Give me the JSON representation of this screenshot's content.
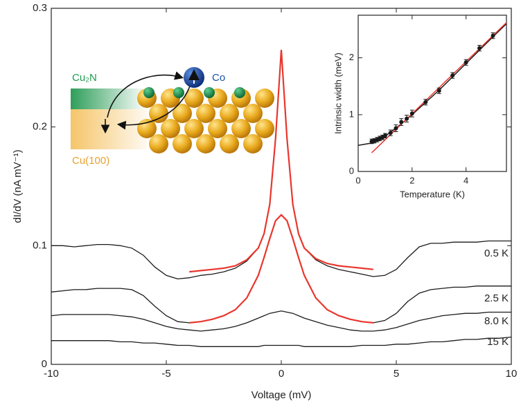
{
  "chart_data": [
    {
      "type": "line",
      "x_label": "Voltage (mV)",
      "y_label": "dI/dV (nA mV⁻¹)",
      "xlim": [
        -10,
        10
      ],
      "xticks": [
        -10,
        -5,
        0,
        5,
        10
      ],
      "ylim": [
        0,
        0.3
      ],
      "yticks": [
        0,
        0.1,
        0.2,
        0.3
      ],
      "x": [
        -10,
        -9.5,
        -9,
        -8.5,
        -8,
        -7.5,
        -7,
        -6.5,
        -6,
        -5.5,
        -5,
        -4.5,
        -4,
        -3.5,
        -3,
        -2.5,
        -2,
        -1.5,
        -1,
        -0.75,
        -0.5,
        -0.25,
        0,
        0.25,
        0.5,
        0.75,
        1,
        1.5,
        2,
        2.5,
        3,
        3.5,
        4,
        4.5,
        5,
        5.5,
        6,
        6.5,
        7,
        7.5,
        8,
        8.5,
        9,
        9.5,
        10
      ],
      "series": [
        {
          "color": "#1a1a1a",
          "values": [
            0.1,
            0.1,
            0.099,
            0.1,
            0.101,
            0.101,
            0.1,
            0.098,
            0.092,
            0.082,
            0.075,
            0.072,
            0.073,
            0.075,
            0.076,
            0.078,
            0.081,
            0.087,
            0.098,
            0.11,
            0.135,
            0.19,
            0.265,
            0.19,
            0.135,
            0.11,
            0.098,
            0.088,
            0.083,
            0.08,
            0.078,
            0.076,
            0.074,
            0.075,
            0.08,
            0.09,
            0.099,
            0.102,
            0.102,
            0.103,
            0.103,
            0.103,
            0.104,
            0.104,
            0.104
          ]
        },
        {
          "color": "#1a1a1a",
          "values": [
            0.061,
            0.062,
            0.063,
            0.063,
            0.064,
            0.064,
            0.064,
            0.063,
            0.058,
            0.049,
            0.041,
            0.036,
            0.035,
            0.036,
            0.038,
            0.041,
            0.046,
            0.056,
            0.075,
            0.09,
            0.106,
            0.121,
            0.126,
            0.121,
            0.106,
            0.09,
            0.075,
            0.056,
            0.046,
            0.041,
            0.038,
            0.036,
            0.035,
            0.037,
            0.043,
            0.053,
            0.06,
            0.063,
            0.064,
            0.065,
            0.065,
            0.066,
            0.066,
            0.066,
            0.066
          ]
        },
        {
          "color": "#1a1a1a",
          "values": [
            0.041,
            0.042,
            0.042,
            0.042,
            0.042,
            0.042,
            0.041,
            0.04,
            0.038,
            0.035,
            0.032,
            0.03,
            0.029,
            0.028,
            0.029,
            0.03,
            0.032,
            0.035,
            0.039,
            0.041,
            0.043,
            0.044,
            0.045,
            0.044,
            0.043,
            0.041,
            0.039,
            0.036,
            0.033,
            0.031,
            0.029,
            0.028,
            0.028,
            0.029,
            0.031,
            0.034,
            0.037,
            0.039,
            0.041,
            0.042,
            0.043,
            0.043,
            0.044,
            0.044,
            0.044
          ]
        },
        {
          "color": "#1a1a1a",
          "values": [
            0.02,
            0.02,
            0.02,
            0.02,
            0.02,
            0.02,
            0.019,
            0.019,
            0.018,
            0.018,
            0.017,
            0.016,
            0.016,
            0.015,
            0.015,
            0.015,
            0.015,
            0.015,
            0.015,
            0.016,
            0.016,
            0.016,
            0.016,
            0.016,
            0.016,
            0.016,
            0.015,
            0.015,
            0.015,
            0.015,
            0.015,
            0.016,
            0.016,
            0.016,
            0.017,
            0.017,
            0.018,
            0.019,
            0.019,
            0.02,
            0.021,
            0.021,
            0.022,
            0.022,
            0.023
          ]
        },
        {
          "color": "#e8362d",
          "values": [
            null,
            null,
            null,
            null,
            null,
            null,
            null,
            null,
            null,
            null,
            null,
            null,
            0.078,
            0.079,
            0.08,
            0.081,
            0.083,
            0.088,
            0.098,
            0.11,
            0.135,
            0.19,
            0.265,
            0.19,
            0.135,
            0.11,
            0.098,
            0.089,
            0.085,
            0.083,
            0.082,
            0.081,
            0.08,
            null,
            null,
            null,
            null,
            null,
            null,
            null,
            null,
            null,
            null,
            null,
            null
          ]
        },
        {
          "color": "#e8362d",
          "values": [
            null,
            null,
            null,
            null,
            null,
            null,
            null,
            null,
            null,
            null,
            null,
            null,
            0.035,
            0.036,
            0.038,
            0.041,
            0.046,
            0.056,
            0.075,
            0.09,
            0.106,
            0.121,
            0.126,
            0.121,
            0.106,
            0.09,
            0.075,
            0.056,
            0.046,
            0.041,
            0.038,
            0.036,
            0.035,
            null,
            null,
            null,
            null,
            null,
            null,
            null,
            null,
            null,
            null,
            null,
            null
          ]
        }
      ],
      "curve_labels": [
        "0.5 K",
        "2.5 K",
        "8.0 K",
        "15 K"
      ]
    },
    {
      "type": "scatter",
      "x_label": "Temperature (K)",
      "y_label": "Intrinsic width (meV)",
      "xlim": [
        0,
        5.5
      ],
      "xticks": [
        0,
        2,
        4
      ],
      "ylim": [
        0,
        2.75
      ],
      "yticks": [
        0,
        1,
        2
      ],
      "points": {
        "color": "#1a1a1a",
        "x": [
          0.5,
          0.6,
          0.7,
          0.8,
          0.9,
          1.0,
          1.2,
          1.4,
          1.6,
          1.8,
          2.0,
          2.5,
          3.0,
          3.5,
          4.0,
          4.5,
          5.0
        ],
        "values": [
          0.53,
          0.54,
          0.56,
          0.58,
          0.6,
          0.63,
          0.68,
          0.76,
          0.87,
          0.93,
          1.02,
          1.22,
          1.42,
          1.69,
          1.92,
          2.17,
          2.39
        ],
        "errors": [
          0.04,
          0.04,
          0.04,
          0.04,
          0.04,
          0.04,
          0.05,
          0.06,
          0.06,
          0.06,
          0.06,
          0.05,
          0.05,
          0.05,
          0.05,
          0.05,
          0.05
        ]
      },
      "fit_lines": [
        {
          "color": "#1a1a1a",
          "x": [
            0,
            0.5,
            1,
            1.5,
            2,
            3,
            4,
            5,
            5.5
          ],
          "values": [
            0.46,
            0.5,
            0.62,
            0.8,
            1.0,
            1.43,
            1.9,
            2.37,
            2.6
          ]
        },
        {
          "color": "#e8362d",
          "x": [
            0.5,
            5.5
          ],
          "values": [
            0.33,
            2.62
          ]
        }
      ]
    }
  ],
  "illustration": {
    "cu2n": "Cu₂N",
    "co": "Co",
    "cu100": "Cu(100)"
  }
}
